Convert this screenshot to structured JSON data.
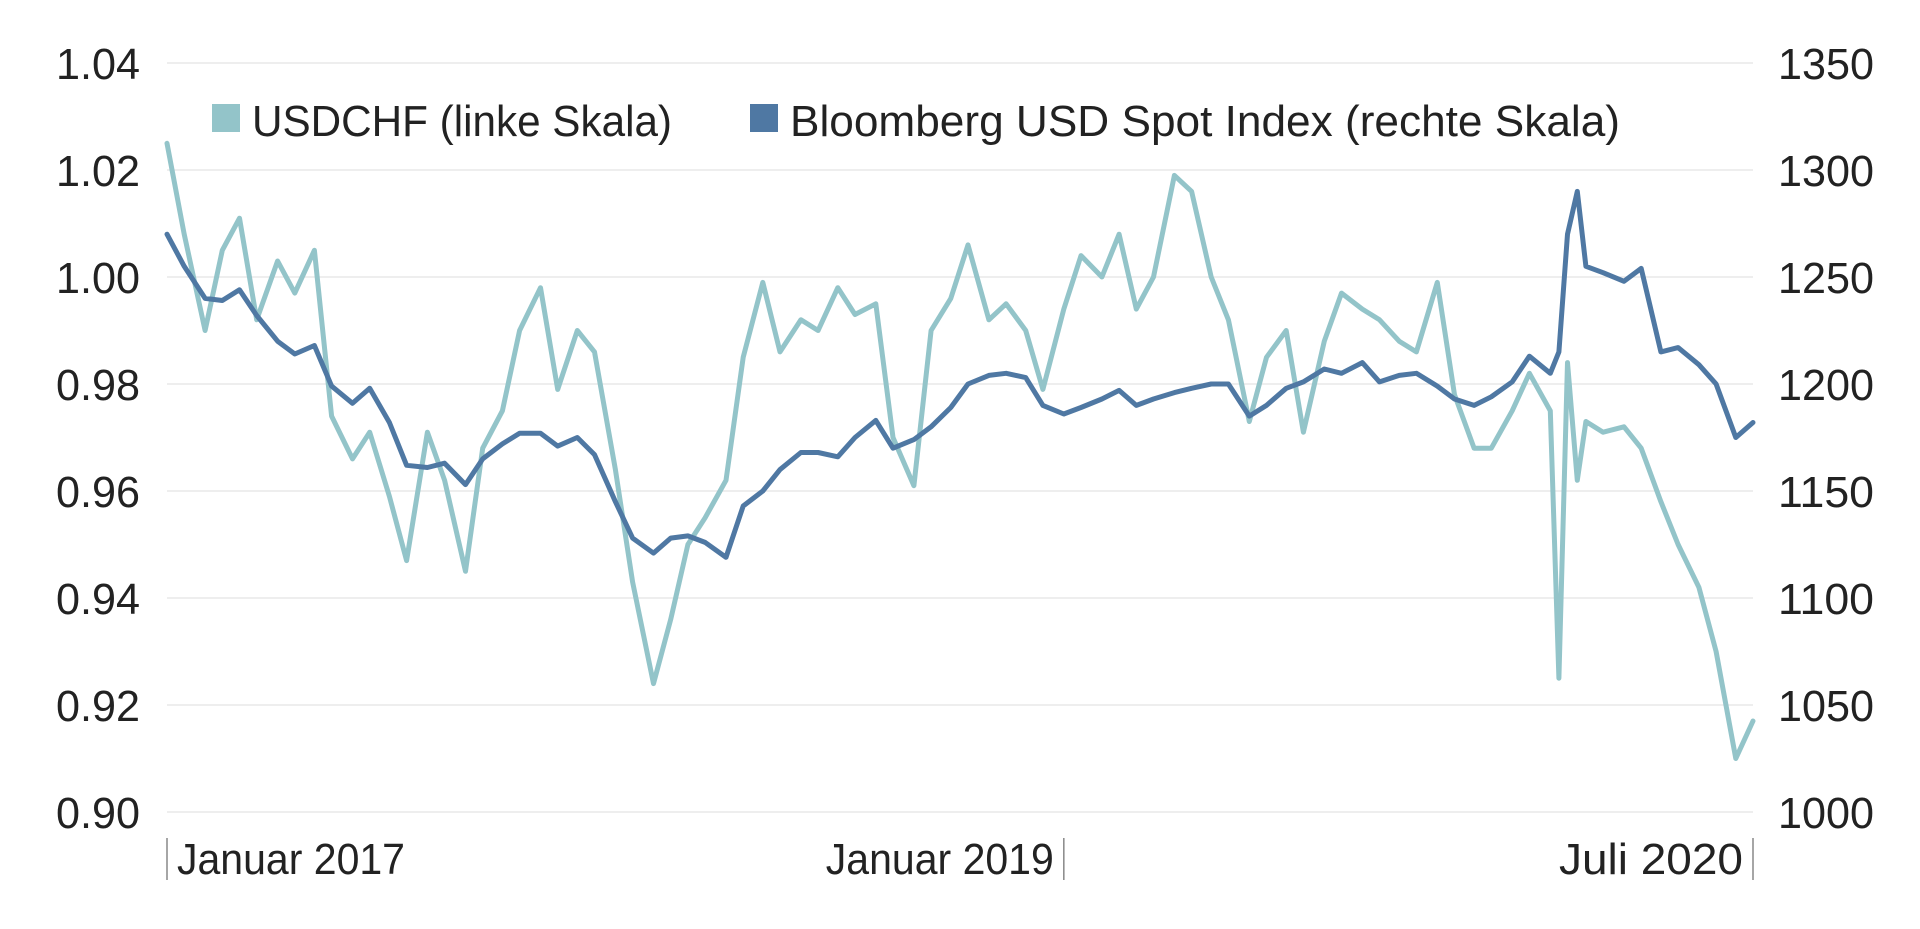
{
  "chart_data": {
    "type": "line",
    "title": "",
    "legend_position": "top-left",
    "grid": true,
    "x_range": [
      "2017-01-01",
      "2020-07-15"
    ],
    "x_tick_labels": [
      {
        "date": "2017-01-01",
        "label": "Januar 2017"
      },
      {
        "date": "2019-01-01",
        "label": "Januar 2019"
      },
      {
        "date": "2020-07-15",
        "label": "Juli 2020"
      }
    ],
    "y_left": {
      "range": [
        0.9,
        1.04
      ],
      "ticks": [
        "0.90",
        "0.92",
        "0.94",
        "0.96",
        "0.98",
        "1.00",
        "1.02",
        "1.04"
      ]
    },
    "y_right": {
      "range": [
        1000,
        1350
      ],
      "ticks": [
        "1000",
        "1050",
        "1100",
        "1150",
        "1200",
        "1250",
        "1300",
        "1350"
      ]
    },
    "x": [
      "2017-01-01",
      "2017-01-15",
      "2017-02-01",
      "2017-02-15",
      "2017-03-01",
      "2017-03-15",
      "2017-04-01",
      "2017-04-15",
      "2017-05-01",
      "2017-05-15",
      "2017-06-01",
      "2017-06-15",
      "2017-07-01",
      "2017-07-15",
      "2017-08-01",
      "2017-08-15",
      "2017-09-01",
      "2017-09-15",
      "2017-10-01",
      "2017-10-15",
      "2017-11-01",
      "2017-11-15",
      "2017-12-01",
      "2017-12-15",
      "2018-01-01",
      "2018-01-15",
      "2018-02-01",
      "2018-02-15",
      "2018-03-01",
      "2018-03-15",
      "2018-04-01",
      "2018-04-15",
      "2018-05-01",
      "2018-05-15",
      "2018-06-01",
      "2018-06-15",
      "2018-07-01",
      "2018-07-15",
      "2018-08-01",
      "2018-08-15",
      "2018-09-01",
      "2018-09-15",
      "2018-10-01",
      "2018-10-15",
      "2018-11-01",
      "2018-11-15",
      "2018-12-01",
      "2018-12-15",
      "2019-01-01",
      "2019-01-15",
      "2019-02-01",
      "2019-02-15",
      "2019-03-01",
      "2019-03-15",
      "2019-04-01",
      "2019-04-15",
      "2019-05-01",
      "2019-05-15",
      "2019-06-01",
      "2019-06-15",
      "2019-07-01",
      "2019-07-15",
      "2019-08-01",
      "2019-08-15",
      "2019-09-01",
      "2019-09-15",
      "2019-10-01",
      "2019-10-15",
      "2019-11-01",
      "2019-11-15",
      "2019-12-01",
      "2019-12-15",
      "2020-01-01",
      "2020-01-15",
      "2020-02-01",
      "2020-02-08",
      "2020-02-15",
      "2020-02-23",
      "2020-03-01",
      "2020-03-15",
      "2020-04-01",
      "2020-04-15",
      "2020-05-01",
      "2020-05-15",
      "2020-06-01",
      "2020-06-15",
      "2020-07-01",
      "2020-07-15"
    ],
    "series": [
      {
        "name": "USDCHF (linke Skala)",
        "axis": "left",
        "color": "#93c4c9",
        "values": [
          1.025,
          1.008,
          0.99,
          1.005,
          1.011,
          0.992,
          1.003,
          0.997,
          1.005,
          0.974,
          0.966,
          0.971,
          0.959,
          0.947,
          0.971,
          0.962,
          0.945,
          0.968,
          0.975,
          0.99,
          0.998,
          0.979,
          0.99,
          0.986,
          0.964,
          0.943,
          0.924,
          0.936,
          0.95,
          0.955,
          0.962,
          0.985,
          0.999,
          0.986,
          0.992,
          0.99,
          0.998,
          0.993,
          0.995,
          0.97,
          0.961,
          0.99,
          0.996,
          1.006,
          0.992,
          0.995,
          0.99,
          0.979,
          0.994,
          1.004,
          1.0,
          1.008,
          0.994,
          1.0,
          1.019,
          1.016,
          1.0,
          0.992,
          0.973,
          0.985,
          0.99,
          0.971,
          0.988,
          0.997,
          0.994,
          0.992,
          0.988,
          0.986,
          0.999,
          0.978,
          0.968,
          0.968,
          0.975,
          0.982,
          0.975,
          0.925,
          0.984,
          0.962,
          0.973,
          0.971,
          0.972,
          0.968,
          0.958,
          0.95,
          0.942,
          0.93,
          0.91,
          0.917
        ]
      },
      {
        "name": "Bloomberg USD Spot Index (rechte Skala)",
        "axis": "right",
        "color": "#4f78a3",
        "values": [
          1270,
          1255,
          1240,
          1239,
          1244,
          1232,
          1220,
          1214,
          1218,
          1199,
          1191,
          1198,
          1182,
          1162,
          1161,
          1163,
          1153,
          1165,
          1172,
          1177,
          1177,
          1171,
          1175,
          1167,
          1145,
          1128,
          1121,
          1128,
          1129,
          1126,
          1119,
          1143,
          1150,
          1160,
          1168,
          1168,
          1166,
          1175,
          1183,
          1170,
          1174,
          1180,
          1189,
          1200,
          1204,
          1205,
          1203,
          1190,
          1186,
          1189,
          1193,
          1197,
          1190,
          1193,
          1196,
          1198,
          1200,
          1200,
          1185,
          1190,
          1198,
          1201,
          1207,
          1205,
          1210,
          1201,
          1204,
          1205,
          1199,
          1193,
          1190,
          1194,
          1201,
          1213,
          1205,
          1215,
          1270,
          1290,
          1255,
          1252,
          1248,
          1254,
          1215,
          1217,
          1209,
          1200,
          1175,
          1182
        ]
      }
    ]
  }
}
